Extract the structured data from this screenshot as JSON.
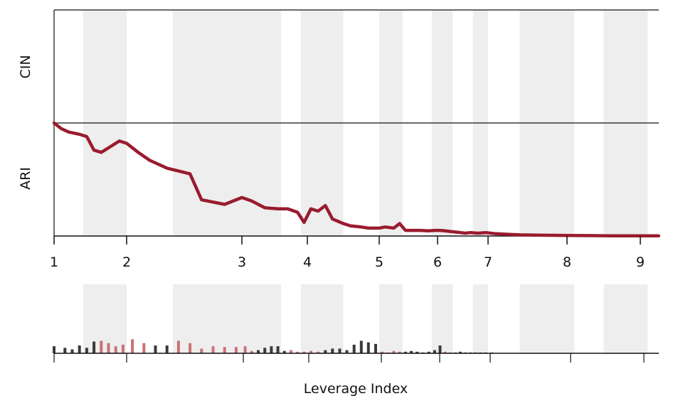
{
  "chart_data": {
    "type": "line",
    "xlabel": "Leverage Index",
    "row_labels": [
      "CIN",
      "ARI"
    ],
    "x_ticks": [
      {
        "value": 1,
        "label": "1"
      },
      {
        "value": 2,
        "label": "2"
      },
      {
        "value": 3,
        "label": "3"
      },
      {
        "value": 4,
        "label": "4"
      },
      {
        "value": 5,
        "label": "5"
      },
      {
        "value": 6,
        "label": "6"
      },
      {
        "value": 7,
        "label": "7"
      },
      {
        "value": 8,
        "label": "8"
      },
      {
        "value": 9,
        "label": "9"
      }
    ],
    "xlim": [
      1,
      9.25
    ],
    "ylim": [
      0,
      1
    ],
    "shaded_bands": [
      [
        1.4,
        2.0
      ],
      [
        2.4,
        3.6
      ],
      [
        3.9,
        4.5
      ],
      [
        5.0,
        5.4
      ],
      [
        5.9,
        6.3
      ],
      [
        6.7,
        7.0
      ],
      [
        7.4,
        8.1
      ],
      [
        8.5,
        9.1
      ]
    ],
    "colors": {
      "line": "#9a1b2e",
      "band": "#eeeeee",
      "bar_dark": "#3a3a3a",
      "bar_red": "#c97276"
    },
    "series": [
      {
        "x": [
          1.0,
          1.1,
          1.2,
          1.35,
          1.45,
          1.55,
          1.65,
          1.75,
          1.9,
          2.0,
          2.1,
          2.2,
          2.35,
          2.55,
          2.65,
          2.85,
          3.0,
          3.15,
          3.35,
          3.55,
          3.7,
          3.85,
          3.95,
          4.05,
          4.15,
          4.25,
          4.35,
          4.5,
          4.6,
          4.75,
          4.85,
          5.0,
          5.1,
          5.25,
          5.35,
          5.45,
          5.55,
          5.7,
          5.85,
          5.95,
          6.05,
          6.15,
          6.25,
          6.35,
          6.45,
          6.55,
          6.65,
          6.8,
          6.95,
          7.1,
          7.25,
          7.4,
          7.6,
          7.8,
          8.0,
          8.2,
          8.4,
          8.6,
          8.8,
          9.0,
          9.25
        ],
        "values": [
          1.0,
          0.95,
          0.92,
          0.9,
          0.88,
          0.76,
          0.74,
          0.78,
          0.84,
          0.82,
          0.74,
          0.67,
          0.6,
          0.55,
          0.32,
          0.28,
          0.34,
          0.31,
          0.25,
          0.24,
          0.24,
          0.21,
          0.12,
          0.24,
          0.22,
          0.27,
          0.15,
          0.11,
          0.09,
          0.08,
          0.07,
          0.07,
          0.08,
          0.07,
          0.11,
          0.05,
          0.05,
          0.05,
          0.045,
          0.05,
          0.05,
          0.045,
          0.04,
          0.035,
          0.03,
          0.025,
          0.03,
          0.025,
          0.03,
          0.02,
          0.015,
          0.01,
          0.008,
          0.006,
          0.005,
          0.004,
          0.003,
          0.002,
          0.002,
          0.001,
          0.001
        ]
      }
    ],
    "bars": {
      "x": [
        1.0,
        1.15,
        1.25,
        1.35,
        1.45,
        1.55,
        1.65,
        1.75,
        1.85,
        1.95,
        2.05,
        2.15,
        2.25,
        2.35,
        2.45,
        2.55,
        2.65,
        2.75,
        2.85,
        2.95,
        3.05,
        3.15,
        3.25,
        3.35,
        3.45,
        3.55,
        3.65,
        3.75,
        3.85,
        3.95,
        4.05,
        4.15,
        4.25,
        4.35,
        4.45,
        4.55,
        4.65,
        4.75,
        4.85,
        4.95,
        5.05,
        5.15,
        5.25,
        5.35,
        5.45,
        5.55,
        5.65,
        5.75,
        5.85,
        5.95,
        6.05,
        6.15,
        6.25,
        6.35,
        6.45,
        6.55,
        6.65,
        6.75,
        6.85,
        6.95,
        7.05
      ],
      "values": [
        0.45,
        0.35,
        0.25,
        0.5,
        0.35,
        0.75,
        0.8,
        0.65,
        0.45,
        0.55,
        0.9,
        0.65,
        0.5,
        0.5,
        0.8,
        0.65,
        0.3,
        0.45,
        0.4,
        0.4,
        0.45,
        0.15,
        0.2,
        0.35,
        0.45,
        0.45,
        0.15,
        0.2,
        0.1,
        0.1,
        0.15,
        0.1,
        0.2,
        0.3,
        0.3,
        0.2,
        0.55,
        0.8,
        0.7,
        0.6,
        0.1,
        0.05,
        0.15,
        0.1,
        0.1,
        0.15,
        0.1,
        0.05,
        0.1,
        0.2,
        0.5,
        0.1,
        0.05,
        0.05,
        0.1,
        0.05,
        0.05,
        0.05,
        0.05,
        0.05,
        0.05
      ],
      "highlight": [
        false,
        false,
        false,
        false,
        false,
        false,
        true,
        true,
        true,
        true,
        true,
        true,
        false,
        false,
        true,
        true,
        true,
        true,
        true,
        true,
        true,
        true,
        false,
        false,
        false,
        false,
        false,
        true,
        true,
        true,
        true,
        true,
        false,
        false,
        false,
        false,
        false,
        false,
        false,
        false,
        true,
        true,
        true,
        true,
        false,
        false,
        false,
        false,
        false,
        false,
        false,
        true,
        true,
        false,
        false,
        false,
        false,
        false,
        false,
        false,
        false
      ]
    }
  }
}
